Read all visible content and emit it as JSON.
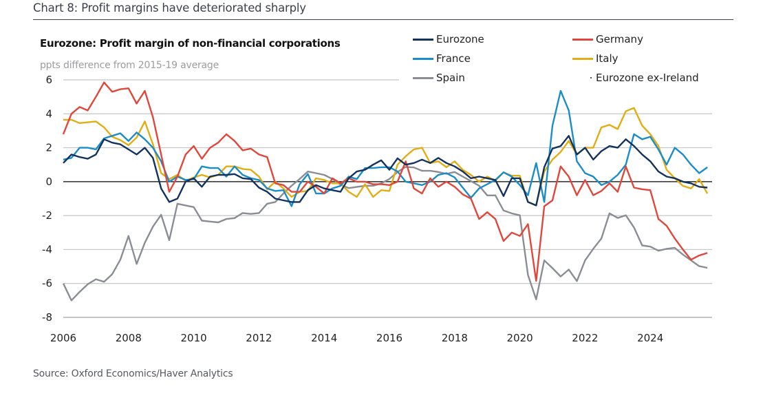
{
  "header": {
    "title": "Chart 8: Profit margins have deteriorated sharply"
  },
  "footer": {
    "source": "Source: Oxford Economics/Haver Analytics"
  },
  "chart_data": {
    "type": "line",
    "title": "Eurozone: Profit margin of non-financial corporations",
    "ylabel": "ppts difference from 2015-19 average",
    "xlabel": "",
    "ylim": [
      -8,
      6
    ],
    "xlim": [
      2006,
      2026
    ],
    "y_ticks": [
      "6",
      "4",
      "2",
      "0",
      "-2",
      "-4",
      "-6",
      "-8"
    ],
    "x_ticks": [
      "2006",
      "2008",
      "2010",
      "2012",
      "2014",
      "2016",
      "2018",
      "2020",
      "2022",
      "2024"
    ],
    "grid": true,
    "legend_position": "top-right",
    "x": [
      "2006Q1",
      "2006Q2",
      "2006Q3",
      "2006Q4",
      "2007Q1",
      "2007Q2",
      "2007Q3",
      "2007Q4",
      "2008Q1",
      "2008Q2",
      "2008Q3",
      "2008Q4",
      "2009Q1",
      "2009Q2",
      "2009Q3",
      "2009Q4",
      "2010Q1",
      "2010Q2",
      "2010Q3",
      "2010Q4",
      "2011Q1",
      "2011Q2",
      "2011Q3",
      "2011Q4",
      "2012Q1",
      "2012Q2",
      "2012Q3",
      "2012Q4",
      "2013Q1",
      "2013Q2",
      "2013Q3",
      "2013Q4",
      "2014Q1",
      "2014Q2",
      "2014Q3",
      "2014Q4",
      "2015Q1",
      "2015Q2",
      "2015Q3",
      "2015Q4",
      "2016Q1",
      "2016Q2",
      "2016Q3",
      "2016Q4",
      "2017Q1",
      "2017Q2",
      "2017Q3",
      "2017Q4",
      "2018Q1",
      "2018Q2",
      "2018Q3",
      "2018Q4",
      "2019Q1",
      "2019Q2",
      "2019Q3",
      "2019Q4",
      "2020Q1",
      "2020Q2",
      "2020Q3",
      "2020Q4",
      "2021Q1",
      "2021Q2",
      "2021Q3",
      "2021Q4",
      "2022Q1",
      "2022Q2",
      "2022Q3",
      "2022Q4",
      "2023Q1",
      "2023Q2",
      "2023Q3",
      "2023Q4",
      "2024Q1",
      "2024Q2",
      "2024Q3",
      "2024Q4",
      "2025Q1",
      "2025Q2",
      "2025Q3",
      "2025Q4"
    ],
    "series": [
      {
        "name": "Spain",
        "color": "#8a8d93",
        "values": [
          -6.0,
          -7.0,
          -6.5,
          -6.05,
          -5.75,
          -5.9,
          -5.45,
          -4.6,
          -3.2,
          -4.85,
          -3.6,
          -2.65,
          -1.95,
          -3.45,
          -1.3,
          -1.4,
          -1.5,
          -2.3,
          -2.35,
          -2.4,
          -2.2,
          -2.15,
          -1.85,
          -1.9,
          -1.85,
          -1.3,
          -1.2,
          -0.7,
          -0.24,
          0.16,
          0.6,
          0.5,
          0.4,
          0.16,
          -0.18,
          -0.38,
          -0.31,
          -0.24,
          -0.24,
          -0.1,
          0.16,
          0.57,
          0.87,
          0.84,
          0.64,
          0.64,
          0.57,
          0.46,
          0.57,
          0.3,
          0.03,
          -0.24,
          -0.81,
          -0.81,
          -1.7,
          -1.87,
          -1.98,
          -5.5,
          -6.94,
          -4.64,
          -5.1,
          -5.59,
          -5.18,
          -5.86,
          -4.64,
          -3.96,
          -3.35,
          -1.87,
          -2.14,
          -1.98,
          -2.7,
          -3.76,
          -3.83,
          -4.07,
          -3.96,
          -3.9,
          -4.3,
          -4.64,
          -4.98,
          -5.08
        ]
      },
      {
        "name": "Italy",
        "color": "#e3ad12",
        "values": [
          3.65,
          3.65,
          3.45,
          3.5,
          3.55,
          3.2,
          2.65,
          2.45,
          2.15,
          2.6,
          3.55,
          2.2,
          0.5,
          0.15,
          0.4,
          0.05,
          0.25,
          0.4,
          0.25,
          0.4,
          0.9,
          0.9,
          0.75,
          0.7,
          0.3,
          -0.45,
          0.0,
          -0.4,
          -0.9,
          -0.6,
          -0.55,
          0.2,
          0.1,
          -0.1,
          -0.1,
          -0.6,
          -0.9,
          -0.15,
          -0.9,
          -0.5,
          -0.55,
          1.0,
          1.5,
          1.9,
          2.0,
          1.1,
          1.2,
          0.85,
          1.2,
          0.7,
          0.4,
          0.0,
          0.3,
          0.05,
          0.55,
          0.35,
          0.35,
          -1.2,
          -1.4,
          0.6,
          1.3,
          1.75,
          2.4,
          1.6,
          2.0,
          2.0,
          3.2,
          3.35,
          3.1,
          4.15,
          4.35,
          3.3,
          2.8,
          2.1,
          0.7,
          0.2,
          -0.25,
          -0.4,
          0.15,
          -0.7
        ]
      },
      {
        "name": "France",
        "color": "#1a8cc8",
        "values": [
          1.3,
          1.4,
          2.0,
          2.0,
          1.9,
          2.55,
          2.7,
          2.85,
          2.4,
          2.9,
          2.5,
          2.0,
          1.2,
          0.0,
          0.3,
          0.1,
          0.15,
          0.9,
          0.8,
          0.8,
          0.3,
          0.9,
          0.4,
          0.2,
          0.1,
          -0.4,
          -0.55,
          -0.5,
          -1.45,
          -0.15,
          0.45,
          -0.7,
          -0.7,
          -0.4,
          -0.25,
          0.3,
          0.15,
          0.8,
          0.8,
          0.85,
          0.85,
          0.6,
          0.0,
          -0.1,
          -0.2,
          0.0,
          0.4,
          0.5,
          0.25,
          -0.35,
          -0.95,
          -0.4,
          -0.15,
          0.1,
          0.55,
          0.3,
          -0.2,
          -0.8,
          1.1,
          -1.2,
          3.3,
          5.35,
          4.2,
          1.2,
          0.5,
          0.3,
          -0.2,
          0.0,
          0.4,
          1.0,
          2.8,
          2.5,
          2.65,
          1.9,
          1.0,
          2.0,
          1.6,
          1.0,
          0.5,
          0.85
        ]
      },
      {
        "name": "Germany",
        "color": "#e0463a",
        "values": [
          2.8,
          4.0,
          4.4,
          4.2,
          5.0,
          5.85,
          5.3,
          5.45,
          5.5,
          4.6,
          5.35,
          3.8,
          1.6,
          -0.6,
          0.3,
          1.6,
          2.1,
          1.35,
          2.0,
          2.3,
          2.8,
          2.4,
          1.85,
          1.95,
          1.6,
          1.45,
          -0.1,
          -0.2,
          -0.6,
          -0.6,
          0.0,
          -0.3,
          -0.7,
          0.2,
          -0.1,
          0.2,
          0.0,
          0.0,
          -0.15,
          -0.15,
          -0.2,
          0.0,
          1.2,
          -0.4,
          -0.7,
          0.2,
          -0.3,
          0.0,
          -0.3,
          -0.75,
          -1.0,
          -2.2,
          -1.8,
          -2.2,
          -3.5,
          -3.0,
          -3.2,
          -2.5,
          -5.85,
          -1.45,
          -1.1,
          0.9,
          0.3,
          -0.8,
          0.1,
          -0.8,
          -0.55,
          -0.1,
          -0.6,
          0.9,
          -0.35,
          -0.45,
          -0.5,
          -2.2,
          -2.6,
          -3.35,
          -4.0,
          -4.6,
          -4.35,
          -4.2
        ]
      },
      {
        "name": "Eurozone",
        "color": "#12325e",
        "values": [
          1.1,
          1.6,
          1.45,
          1.35,
          1.6,
          2.5,
          2.3,
          2.2,
          1.9,
          1.6,
          2.0,
          1.4,
          -0.4,
          -1.2,
          -1.0,
          0.0,
          0.2,
          -0.3,
          0.3,
          0.4,
          0.4,
          0.45,
          0.2,
          0.15,
          -0.35,
          -0.6,
          -1.0,
          -1.1,
          -1.2,
          -1.2,
          -0.5,
          -0.2,
          -0.4,
          -0.5,
          -0.6,
          0.2,
          0.6,
          0.7,
          1.0,
          1.26,
          0.7,
          1.38,
          1.0,
          1.1,
          1.3,
          1.1,
          1.4,
          1.1,
          0.9,
          0.6,
          0.2,
          0.3,
          0.2,
          0.1,
          -0.85,
          0.2,
          0.2,
          -1.2,
          -1.4,
          0.85,
          1.95,
          2.1,
          2.7,
          1.6,
          2.0,
          1.3,
          1.8,
          2.1,
          2.0,
          2.5,
          2.1,
          1.6,
          1.2,
          0.6,
          0.3,
          0.2,
          0.0,
          -0.1,
          -0.3,
          -0.35
        ]
      }
    ],
    "legend": [
      {
        "label": "Eurozone",
        "color": "#12325e",
        "marker": "line"
      },
      {
        "label": "Germany",
        "color": "#e0463a",
        "marker": "line"
      },
      {
        "label": "France",
        "color": "#1a8cc8",
        "marker": "line"
      },
      {
        "label": "Italy",
        "color": "#e3ad12",
        "marker": "line"
      },
      {
        "label": "Spain",
        "color": "#8a8d93",
        "marker": "line"
      },
      {
        "label": "Eurozone ex-Ireland",
        "color": "#555555",
        "marker": "dot"
      }
    ]
  }
}
